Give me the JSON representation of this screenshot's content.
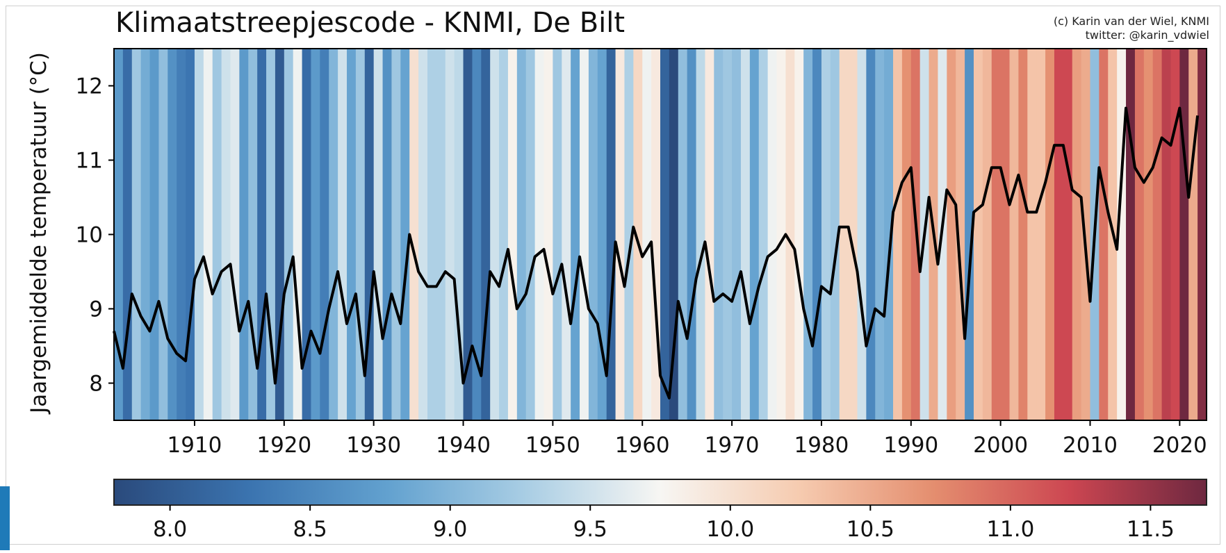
{
  "chart_data": {
    "type": "line",
    "title": "Klimaatstreepjescode - KNMI, De Bilt",
    "credit_line1": "(c) Karin van der Wiel, KNMI",
    "credit_line2": "twitter: @karin_vdwiel",
    "ylabel": "Jaargemiddelde temperatuur (°C)",
    "xlabel": "",
    "xlim": [
      1901,
      2023
    ],
    "ylim": [
      7.5,
      12.5
    ],
    "x_ticks": [
      1910,
      1920,
      1930,
      1940,
      1950,
      1960,
      1970,
      1980,
      1990,
      2000,
      2010,
      2020
    ],
    "y_ticks": [
      8,
      9,
      10,
      11,
      12
    ],
    "grid": false,
    "background": "warming-stripes colored by annual temperature",
    "series": [
      {
        "x": [
          1901,
          1902,
          1903,
          1904,
          1905,
          1906,
          1907,
          1908,
          1909,
          1910,
          1911,
          1912,
          1913,
          1914,
          1915,
          1916,
          1917,
          1918,
          1919,
          1920,
          1921,
          1922,
          1923,
          1924,
          1925,
          1926,
          1927,
          1928,
          1929,
          1930,
          1931,
          1932,
          1933,
          1934,
          1935,
          1936,
          1937,
          1938,
          1939,
          1940,
          1941,
          1942,
          1943,
          1944,
          1945,
          1946,
          1947,
          1948,
          1949,
          1950,
          1951,
          1952,
          1953,
          1954,
          1955,
          1956,
          1957,
          1958,
          1959,
          1960,
          1961,
          1962,
          1963,
          1964,
          1965,
          1966,
          1967,
          1968,
          1969,
          1970,
          1971,
          1972,
          1973,
          1974,
          1975,
          1976,
          1977,
          1978,
          1979,
          1980,
          1981,
          1982,
          1983,
          1984,
          1985,
          1986,
          1987,
          1988,
          1989,
          1990,
          1991,
          1992,
          1993,
          1994,
          1995,
          1996,
          1997,
          1998,
          1999,
          2000,
          2001,
          2002,
          2003,
          2004,
          2005,
          2006,
          2007,
          2008,
          2009,
          2010,
          2011,
          2012,
          2013,
          2014,
          2015,
          2016,
          2017,
          2018,
          2019,
          2020,
          2021,
          2022
        ],
        "values": [
          8.7,
          8.2,
          9.2,
          8.9,
          8.7,
          9.1,
          8.6,
          8.4,
          8.3,
          9.4,
          9.7,
          9.2,
          9.5,
          9.6,
          8.7,
          9.1,
          8.2,
          9.2,
          8.0,
          9.2,
          9.7,
          8.2,
          8.7,
          8.4,
          9.0,
          9.5,
          8.8,
          9.2,
          8.1,
          9.5,
          8.6,
          9.2,
          8.8,
          10.0,
          9.5,
          9.3,
          9.3,
          9.5,
          9.4,
          8.0,
          8.5,
          8.1,
          9.5,
          9.3,
          9.8,
          9.0,
          9.2,
          9.7,
          9.8,
          9.2,
          9.6,
          8.8,
          9.7,
          9.0,
          8.8,
          8.1,
          9.9,
          9.3,
          10.1,
          9.7,
          9.9,
          8.1,
          7.8,
          9.1,
          8.6,
          9.4,
          9.9,
          9.1,
          9.2,
          9.1,
          9.5,
          8.8,
          9.3,
          9.7,
          9.8,
          10.0,
          9.8,
          9.0,
          8.5,
          9.3,
          9.2,
          10.1,
          10.1,
          9.5,
          8.5,
          9.0,
          8.9,
          10.3,
          10.7,
          10.9,
          9.5,
          10.5,
          9.6,
          10.6,
          10.4,
          8.6,
          10.3,
          10.4,
          10.9,
          10.9,
          10.4,
          10.8,
          10.3,
          10.3,
          10.7,
          11.2,
          11.2,
          10.6,
          10.5,
          9.1,
          10.9,
          10.3,
          9.8,
          11.7,
          10.9,
          10.7,
          10.9,
          11.3,
          11.2,
          11.7,
          10.5,
          11.6
        ]
      }
    ],
    "colorbar": {
      "range": [
        7.8,
        11.7
      ],
      "ticks": [
        "8.0",
        "8.5",
        "9.0",
        "9.5",
        "10.0",
        "10.5",
        "11.0",
        "11.5"
      ],
      "colors": [
        "#2a4a7c",
        "#3b74b0",
        "#62a1cf",
        "#a8cde4",
        "#f7f6f3",
        "#f6ccb1",
        "#e48e6f",
        "#cc4651",
        "#6e2840"
      ]
    }
  }
}
